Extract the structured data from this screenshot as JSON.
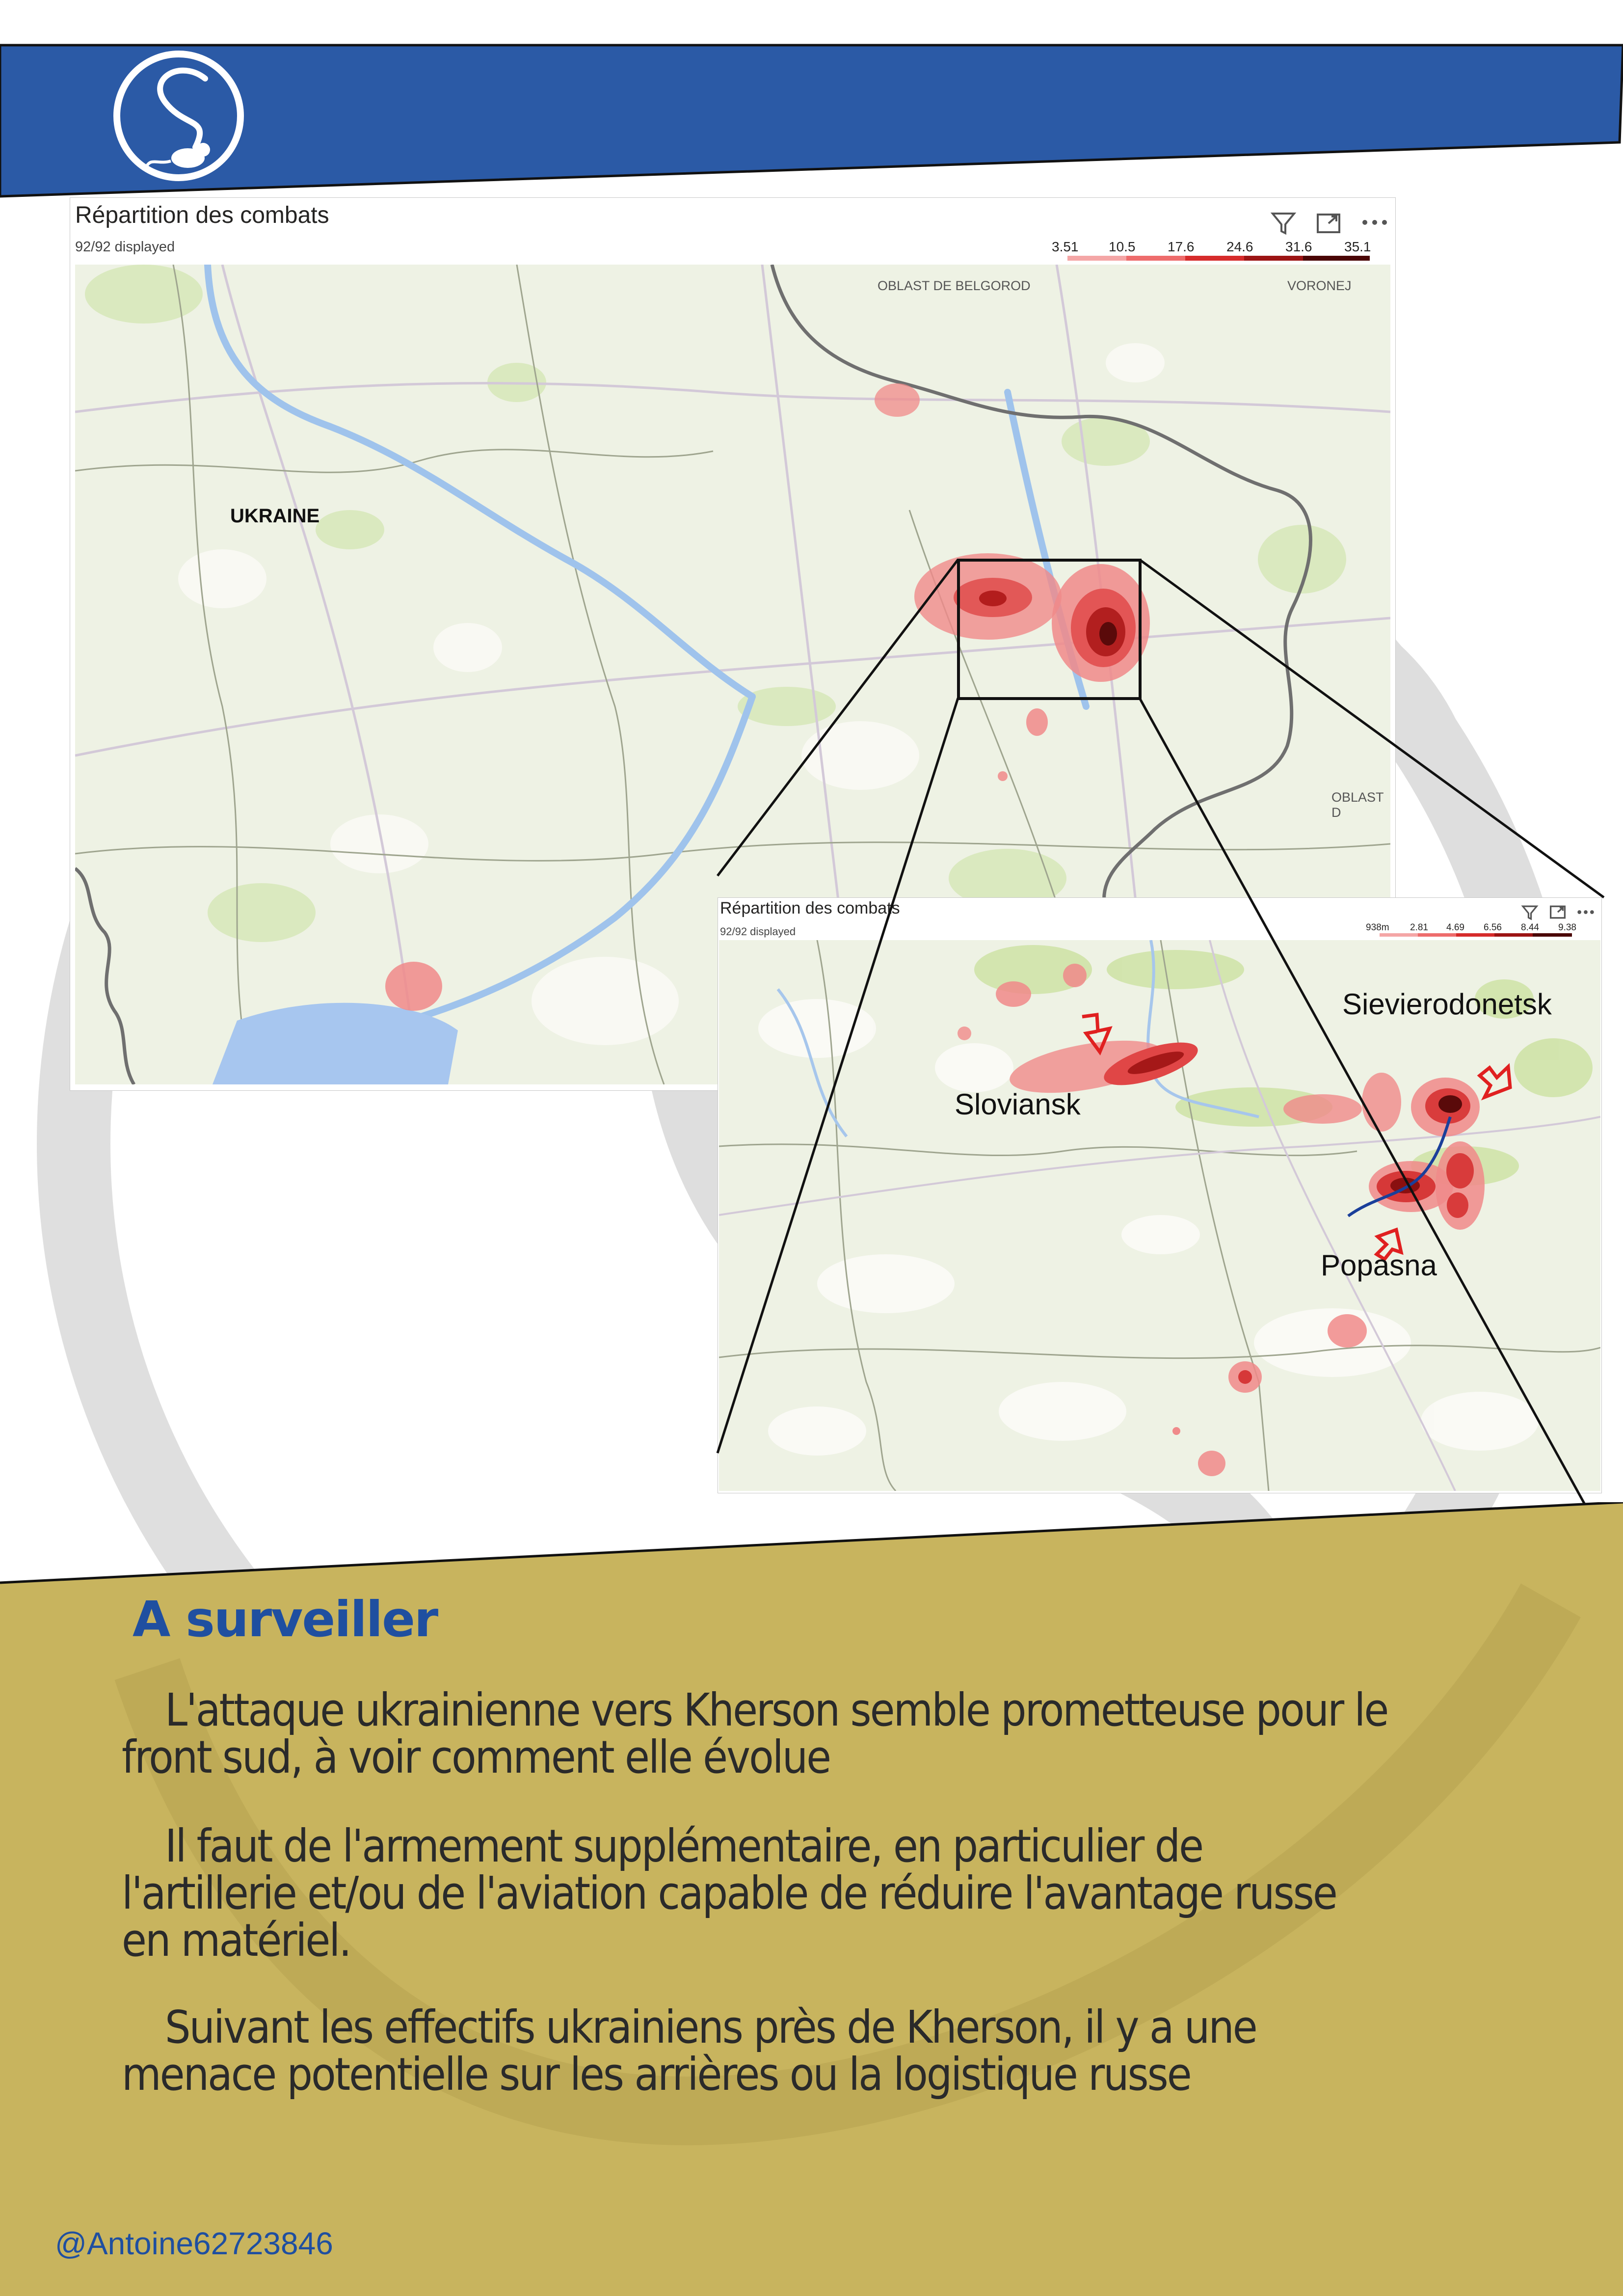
{
  "colors": {
    "header_blue": "#2b5aa6",
    "panel_gold": "#c8b45e",
    "heading_blue": "#1f4fa0",
    "heat_light": "#f08a8a",
    "heat_mid": "#d63a3a",
    "heat_dark": "#7a0d0d",
    "arrow_red": "#e02020",
    "front_line_blue": "#1a3f9a"
  },
  "header": {
    "logo_icon": "rat-in-circle-logo-icon"
  },
  "main_visual": {
    "title": "Répartition des combats",
    "count": "92/92 displayed",
    "legend": [
      "3.51",
      "10.5",
      "17.6",
      "24.6",
      "31.6",
      "35.1"
    ],
    "toolbar": [
      "filter-icon",
      "focus-mode-icon",
      "more-options-icon"
    ],
    "map_labels": {
      "country": "UKRAINE",
      "belgorod": "OBLAST DE BELGOROD",
      "voronej": "VORONEJ",
      "oblast_d": "OBLAST D"
    }
  },
  "inset_visual": {
    "title": "Répartition des combats",
    "count": "92/92 displayed",
    "legend": [
      "938m",
      "2.81",
      "4.69",
      "6.56",
      "8.44",
      "9.38"
    ],
    "toolbar": [
      "filter-icon",
      "focus-mode-icon",
      "more-options-icon"
    ],
    "map_labels": {
      "sloviansk": "Sloviansk",
      "sievierodonetsk": "Sievierodonetsk",
      "popasna": "Popasna"
    }
  },
  "section": {
    "heading": "A surveiller",
    "paragraphs": [
      [
        "L'attaque ukrainienne vers Kherson semble prometteuse pour le",
        "front sud, à voir comment elle évolue"
      ],
      [
        "Il faut de l'armement supplémentaire, en particulier de",
        "l'artillerie et/ou de l'aviation capable de réduire l'avantage russe",
        "en matériel."
      ],
      [
        "Suivant les effectifs ukrainiens près de Kherson, il y a une",
        "menace potentielle sur les arrières ou la logistique russe"
      ]
    ]
  },
  "credit": "@Antoine62723846"
}
